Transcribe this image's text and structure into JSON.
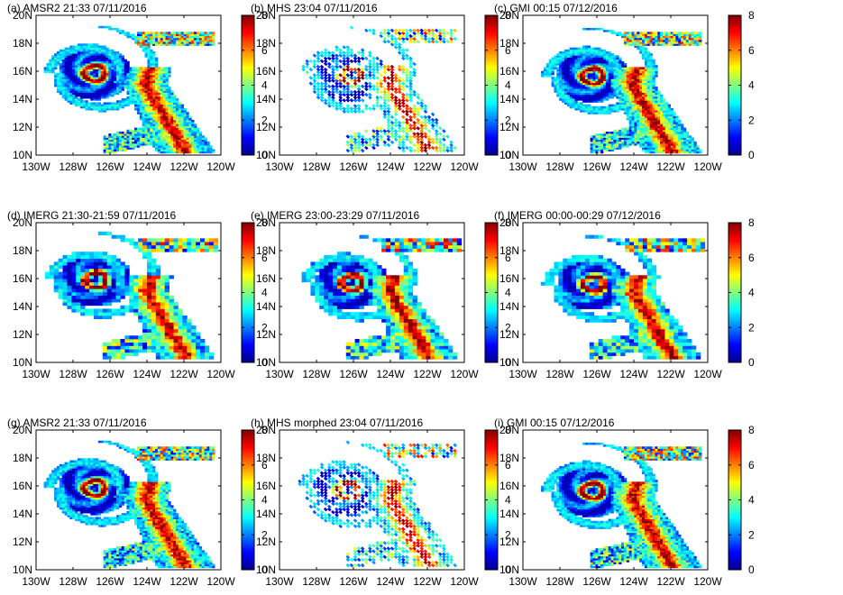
{
  "figure": {
    "colorbar": {
      "colormap": "jet",
      "stops": [
        "#00008f",
        "#0000ff",
        "#0080ff",
        "#00ffff",
        "#80ff80",
        "#ffff00",
        "#ff8000",
        "#ff0000",
        "#800000"
      ],
      "ticks": [
        "0",
        "2",
        "4",
        "6",
        "8"
      ],
      "range": [
        0,
        8
      ]
    },
    "x_ticks": [
      "130W",
      "128W",
      "126W",
      "124W",
      "122W",
      "120W"
    ],
    "y_ticks": [
      "10N",
      "12N",
      "14N",
      "16N",
      "18N",
      "20N"
    ]
  },
  "chart_data": [
    {
      "type": "heatmap",
      "title": "(a) AMSR2  21:33 07/11/2016",
      "xlim": [
        130,
        120
      ],
      "ylim": [
        10,
        20
      ],
      "storm_center": [
        126.9,
        15.8
      ],
      "zmax": 8,
      "style": "smooth"
    },
    {
      "type": "heatmap",
      "title": "(b) MHS 23:04 07/11/2016",
      "xlim": [
        130,
        120
      ],
      "ylim": [
        10,
        20
      ],
      "storm_center": [
        126.2,
        15.6
      ],
      "zmax": 8,
      "style": "dots"
    },
    {
      "type": "heatmap",
      "title": "(c) GMI 00:15 07/12/2016",
      "xlim": [
        130,
        120
      ],
      "ylim": [
        10,
        20
      ],
      "storm_center": [
        126.3,
        15.6
      ],
      "zmax": 8,
      "style": "smooth"
    },
    {
      "type": "heatmap",
      "title": "(d) IMERG 21:30-21:59 07/11/2016",
      "xlim": [
        130,
        120
      ],
      "ylim": [
        10,
        20
      ],
      "storm_center": [
        126.9,
        15.8
      ],
      "zmax": 8,
      "style": "blocky"
    },
    {
      "type": "heatmap",
      "title": "(e) IMERG 23:00-23:29 07/11/2016",
      "xlim": [
        130,
        120
      ],
      "ylim": [
        10,
        20
      ],
      "storm_center": [
        126.2,
        15.6
      ],
      "zmax": 8,
      "style": "blocky"
    },
    {
      "type": "heatmap",
      "title": "(f) IMERG 00:00-00:29 07/12/2016",
      "xlim": [
        130,
        120
      ],
      "ylim": [
        10,
        20
      ],
      "storm_center": [
        126.3,
        15.5
      ],
      "zmax": 8,
      "style": "blocky"
    },
    {
      "type": "heatmap",
      "title": "(g) AMSR2  21:33 07/11/2016",
      "xlim": [
        130,
        120
      ],
      "ylim": [
        10,
        20
      ],
      "storm_center": [
        126.9,
        15.8
      ],
      "zmax": 8,
      "style": "smooth"
    },
    {
      "type": "heatmap",
      "title": "(h) MHS morphed 23:04 07/11/2016",
      "xlim": [
        130,
        120
      ],
      "ylim": [
        10,
        20
      ],
      "storm_center": [
        126.4,
        15.6
      ],
      "zmax": 8,
      "style": "dots"
    },
    {
      "type": "heatmap",
      "title": "(i) GMI 00:15 07/12/2016",
      "xlim": [
        130,
        120
      ],
      "ylim": [
        10,
        20
      ],
      "storm_center": [
        126.3,
        15.6
      ],
      "zmax": 8,
      "style": "smooth"
    }
  ]
}
